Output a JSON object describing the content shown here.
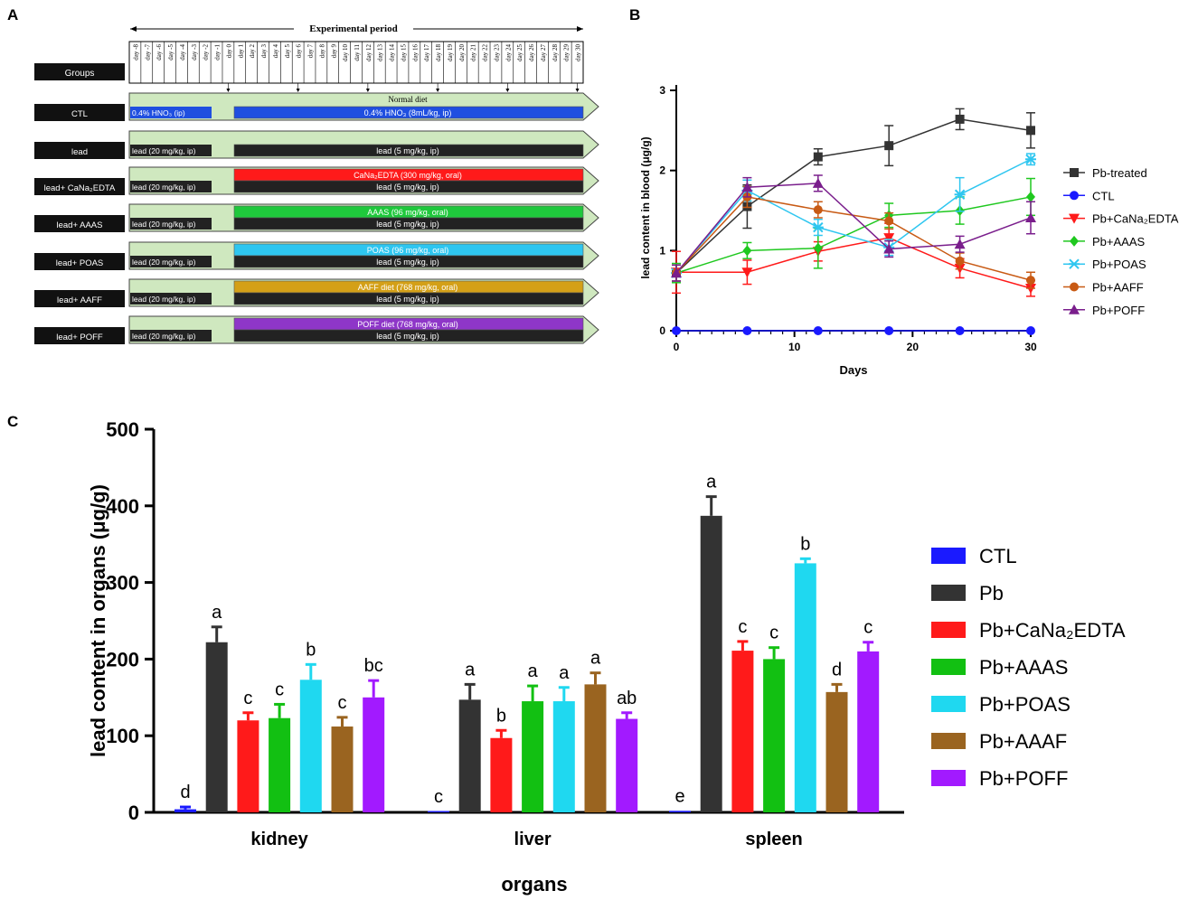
{
  "panels": {
    "a": "A",
    "b": "B",
    "c": "C"
  },
  "timeline": {
    "title": "Experimental period",
    "groups_header": "Groups",
    "days": [
      "day -8",
      "day -7",
      "day -6",
      "day -5",
      "day -4",
      "day -3",
      "day -2",
      "day -1",
      "day 0",
      "day 1",
      "day 2",
      "day 3",
      "day 4",
      "day 5",
      "day 6",
      "day 7",
      "day 8",
      "day 9",
      "day 10",
      "day 11",
      "day 12",
      "day 13",
      "day 14",
      "day 15",
      "day 16",
      "day 17",
      "day 18",
      "day 19",
      "day 20",
      "day 21",
      "day 22",
      "day 23",
      "day 24",
      "day 25",
      "day 26",
      "day 27",
      "day 28",
      "day 29",
      "day 30"
    ],
    "normal_diet": "Normal diet",
    "rows": [
      {
        "label": "CTL",
        "left": "0.4% HNO₃ (ip)",
        "top": "0.4% HNO₃ (8mL/kg, ip)",
        "bottom": "",
        "left_color": "#1f4fe0",
        "top_color": "#1f4fe0"
      },
      {
        "label": "lead",
        "left": "lead (20 mg/kg, ip)",
        "top": "lead (5 mg/kg, ip)",
        "bottom": "",
        "left_color": "#222222",
        "top_color": "#222222"
      },
      {
        "label": "lead+ CaNa₂EDTA",
        "left": "lead (20 mg/kg, ip)",
        "top": "CaNa₂EDTA (300 mg/kg, oral)",
        "bottom": "lead (5 mg/kg, ip)",
        "left_color": "#222222",
        "top_color": "#ff1a1a"
      },
      {
        "label": "lead+ AAAS",
        "left": "lead (20 mg/kg, ip)",
        "top": "AAAS (96 mg/kg, oral)",
        "bottom": "lead (5 mg/kg, ip)",
        "left_color": "#222222",
        "top_color": "#1fc83c"
      },
      {
        "label": "lead+ POAS",
        "left": "lead (20 mg/kg, ip)",
        "top": "POAS (96 mg/kg, oral)",
        "bottom": "lead (5 mg/kg, ip)",
        "left_color": "#222222",
        "top_color": "#2ec6f0"
      },
      {
        "label": "lead+ AAFF",
        "left": "lead (20 mg/kg, ip)",
        "top": "AAFF diet (768 mg/kg, oral)",
        "bottom": "lead (5 mg/kg, ip)",
        "left_color": "#222222",
        "top_color": "#d4a017"
      },
      {
        "label": "lead+ POFF",
        "left": "lead (20 mg/kg, ip)",
        "top": "POFF diet (768 mg/kg, oral)",
        "bottom": "lead (5 mg/kg, ip)",
        "left_color": "#222222",
        "top_color": "#8e36c8"
      }
    ]
  },
  "chart_data": [
    {
      "id": "B",
      "type": "line",
      "title": "",
      "xlabel": "Days",
      "ylabel": "lead content in blood (μg/g)",
      "xlim": [
        0,
        30
      ],
      "ylim": [
        0,
        3
      ],
      "xticks": [
        0,
        10,
        20,
        30
      ],
      "yticks": [
        0,
        1,
        2,
        3
      ],
      "x": [
        0,
        6,
        12,
        18,
        24,
        30
      ],
      "legend_position": "right",
      "series": [
        {
          "name": "Pb-treated",
          "color": "#333333",
          "marker": "square",
          "values": [
            0.72,
            1.55,
            2.17,
            2.31,
            2.64,
            2.5
          ],
          "errors": [
            0.1,
            0.27,
            0.1,
            0.25,
            0.13,
            0.22
          ]
        },
        {
          "name": "CTL",
          "color": "#1a1aff",
          "marker": "circle",
          "values": [
            0.0,
            0.0,
            0.0,
            0.0,
            0.0,
            0.0
          ],
          "errors": [
            0,
            0,
            0,
            0,
            0,
            0
          ]
        },
        {
          "name": "Pb+CaNa₂EDTA",
          "color": "#ff1a1a",
          "marker": "triangle-down",
          "values": [
            0.73,
            0.73,
            0.99,
            1.16,
            0.78,
            0.53
          ],
          "errors": [
            0.26,
            0.15,
            0.12,
            0.18,
            0.12,
            0.1
          ]
        },
        {
          "name": "Pb+AAAS",
          "color": "#1fc81f",
          "marker": "diamond",
          "values": [
            0.72,
            1.0,
            1.03,
            1.44,
            1.5,
            1.67
          ],
          "errors": [
            0.12,
            0.1,
            0.25,
            0.15,
            0.17,
            0.23
          ]
        },
        {
          "name": "Pb+POAS",
          "color": "#2ec6f0",
          "marker": "star",
          "values": [
            0.72,
            1.75,
            1.29,
            1.04,
            1.7,
            2.14
          ],
          "errors": [
            0.1,
            0.13,
            0.1,
            0.1,
            0.21,
            0.07
          ]
        },
        {
          "name": "Pb+AAFF",
          "color": "#c85a14",
          "marker": "circle",
          "values": [
            0.72,
            1.67,
            1.51,
            1.37,
            0.87,
            0.63
          ],
          "errors": [
            0.1,
            0.13,
            0.1,
            0.1,
            0.1,
            0.1
          ]
        },
        {
          "name": "Pb+POFF",
          "color": "#7a1e8c",
          "marker": "triangle-up",
          "values": [
            0.72,
            1.79,
            1.84,
            1.02,
            1.08,
            1.41
          ],
          "errors": [
            0.1,
            0.12,
            0.1,
            0.1,
            0.1,
            0.2
          ]
        }
      ]
    },
    {
      "id": "C",
      "type": "bar",
      "title": "",
      "xlabel": "organs",
      "ylabel": "lead content in organs (μg/g)",
      "ylim": [
        0,
        500
      ],
      "yticks": [
        0,
        100,
        200,
        300,
        400,
        500
      ],
      "categories": [
        "kidney",
        "liver",
        "spleen"
      ],
      "legend_position": "right",
      "series": [
        {
          "name": "CTL",
          "color": "#1a1aff",
          "values": [
            4,
            1,
            2
          ],
          "errors": [
            3,
            0,
            0
          ],
          "letters": [
            "d",
            "c",
            "e"
          ]
        },
        {
          "name": "Pb",
          "color": "#333333",
          "values": [
            222,
            147,
            387
          ],
          "errors": [
            20,
            20,
            25
          ],
          "letters": [
            "a",
            "a",
            "a"
          ]
        },
        {
          "name": "Pb+CaNa₂EDTA",
          "color": "#ff1a1a",
          "values": [
            120,
            97,
            211
          ],
          "errors": [
            10,
            10,
            12
          ],
          "letters": [
            "c",
            "b",
            "c"
          ]
        },
        {
          "name": "Pb+AAAS",
          "color": "#12c012",
          "values": [
            123,
            145,
            200
          ],
          "errors": [
            18,
            20,
            15
          ],
          "letters": [
            "c",
            "a",
            "c"
          ]
        },
        {
          "name": "Pb+POAS",
          "color": "#1fd8f0",
          "values": [
            173,
            145,
            325
          ],
          "errors": [
            20,
            18,
            6
          ],
          "letters": [
            "b",
            "a",
            "b"
          ]
        },
        {
          "name": "Pb+AAAF",
          "color": "#9a6420",
          "values": [
            112,
            167,
            157
          ],
          "errors": [
            12,
            15,
            10
          ],
          "letters": [
            "c",
            "a",
            "d"
          ]
        },
        {
          "name": "Pb+POFF",
          "color": "#a21aff",
          "values": [
            150,
            122,
            210
          ],
          "errors": [
            22,
            8,
            12
          ],
          "letters": [
            "bc",
            "ab",
            "c"
          ]
        }
      ]
    }
  ]
}
